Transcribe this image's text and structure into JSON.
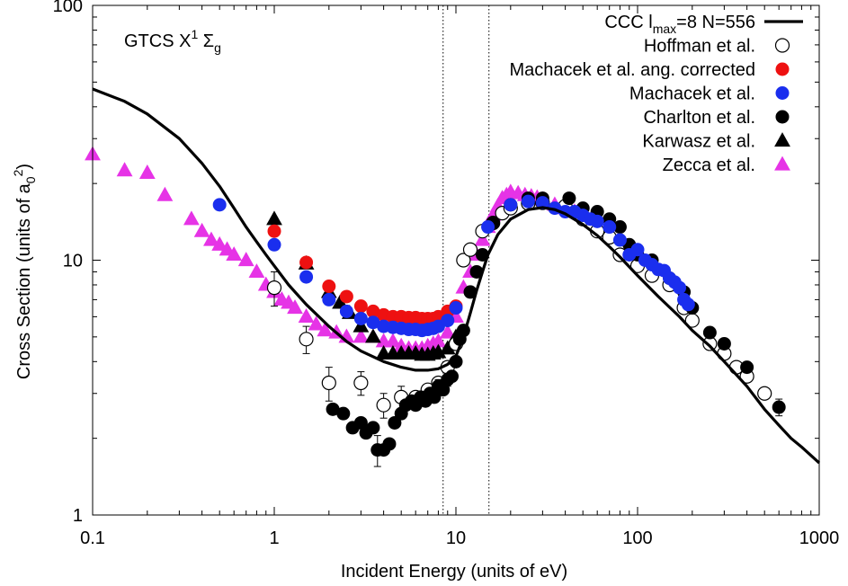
{
  "chart_data": {
    "type": "scatter",
    "xlabel": "Incident Energy (units of eV)",
    "ylabel_main": "Cross Section (units of a",
    "ylabel_sub": "0",
    "ylabel_sup": "2",
    "ylabel_end": ")",
    "xscale": "log",
    "yscale": "log",
    "xlim": [
      0.1,
      1000
    ],
    "ylim": [
      1,
      100
    ],
    "xticks": [
      0.1,
      1,
      10,
      100,
      1000
    ],
    "xtick_labels": [
      "0.1",
      "1",
      "10",
      "100",
      "1000"
    ],
    "yticks": [
      1,
      10,
      100
    ],
    "ytick_labels": [
      "1",
      "10",
      "100"
    ],
    "annotation": {
      "main": "GTCS X",
      "sup": "1",
      "sigma": " Σ",
      "sub": "g"
    },
    "vlines": [
      8.5,
      15.2
    ],
    "legend_position": "top-right",
    "series": [
      {
        "name": "CCC l_max=8 N=556",
        "label_parts": [
          "CCC l",
          "max",
          "=8 N=556"
        ],
        "kind": "line",
        "color": "#000000",
        "points": [
          [
            0.1,
            47
          ],
          [
            0.15,
            42
          ],
          [
            0.2,
            37.5
          ],
          [
            0.3,
            30
          ],
          [
            0.4,
            24
          ],
          [
            0.5,
            19.5
          ],
          [
            0.6,
            16
          ],
          [
            0.7,
            13.5
          ],
          [
            0.8,
            11.8
          ],
          [
            0.9,
            10.5
          ],
          [
            1,
            9.5
          ],
          [
            1.2,
            8
          ],
          [
            1.5,
            6.7
          ],
          [
            2,
            5.5
          ],
          [
            2.5,
            4.8
          ],
          [
            3,
            4.4
          ],
          [
            4,
            4
          ],
          [
            5,
            3.8
          ],
          [
            6,
            3.7
          ],
          [
            7,
            3.7
          ],
          [
            8,
            3.75
          ],
          [
            9,
            3.9
          ],
          [
            10,
            4.2
          ],
          [
            11,
            5
          ],
          [
            12,
            6.2
          ],
          [
            13,
            7.6
          ],
          [
            14,
            9
          ],
          [
            15,
            10.5
          ],
          [
            17,
            12.6
          ],
          [
            20,
            14.5
          ],
          [
            25,
            15.8
          ],
          [
            30,
            16.1
          ],
          [
            35,
            15.8
          ],
          [
            40,
            15.2
          ],
          [
            50,
            13.8
          ],
          [
            60,
            12.5
          ],
          [
            70,
            11.3
          ],
          [
            80,
            10.3
          ],
          [
            100,
            8.7
          ],
          [
            130,
            7.2
          ],
          [
            170,
            6
          ],
          [
            200,
            5.3
          ],
          [
            250,
            4.6
          ],
          [
            300,
            4
          ],
          [
            400,
            3.2
          ],
          [
            500,
            2.6
          ],
          [
            600,
            2.25
          ],
          [
            700,
            2
          ],
          [
            800,
            1.85
          ],
          [
            1000,
            1.6
          ]
        ]
      },
      {
        "name": "Hoffman et al.",
        "kind": "marker",
        "marker": "open-circle",
        "color": "#000000",
        "points": [
          [
            1,
            7.8
          ],
          [
            1.5,
            4.9
          ],
          [
            2,
            3.3
          ],
          [
            3,
            3.3
          ],
          [
            4,
            2.7
          ],
          [
            5,
            2.9
          ],
          [
            6,
            2.9
          ],
          [
            7,
            3.1
          ],
          [
            8,
            3.3
          ],
          [
            9,
            3.8
          ],
          [
            10,
            4.7
          ],
          [
            11,
            10
          ],
          [
            12,
            11
          ],
          [
            14,
            13
          ],
          [
            16,
            14
          ],
          [
            18,
            15.3
          ],
          [
            20,
            16
          ],
          [
            25,
            16.7
          ],
          [
            30,
            16.8
          ],
          [
            40,
            16.3
          ],
          [
            50,
            14.5
          ],
          [
            60,
            13
          ],
          [
            70,
            12.3
          ],
          [
            80,
            10.5
          ],
          [
            100,
            9.5
          ],
          [
            120,
            8.7
          ],
          [
            150,
            8
          ],
          [
            180,
            6.5
          ],
          [
            200,
            5.8
          ],
          [
            250,
            4.7
          ],
          [
            300,
            4.3
          ],
          [
            350,
            3.8
          ],
          [
            400,
            3.5
          ],
          [
            500,
            3
          ]
        ],
        "errors": [
          [
            1,
            1.2
          ],
          [
            1.5,
            0.6
          ],
          [
            2,
            0.5
          ],
          [
            3,
            0.35
          ],
          [
            4,
            0.3
          ],
          [
            5,
            0.3
          ]
        ]
      },
      {
        "name": "Machacek et al. ang. corrected",
        "kind": "marker",
        "marker": "filled-circle",
        "color": "#ee1111",
        "points": [
          [
            1,
            13
          ],
          [
            1.5,
            9.8
          ],
          [
            2,
            7.9
          ],
          [
            2.5,
            7.2
          ],
          [
            3,
            6.6
          ],
          [
            3.5,
            6.3
          ],
          [
            4,
            6.1
          ],
          [
            4.5,
            6
          ],
          [
            5,
            6
          ],
          [
            5.5,
            5.95
          ],
          [
            6,
            5.95
          ],
          [
            6.5,
            5.9
          ],
          [
            7,
            5.9
          ],
          [
            7.5,
            5.9
          ],
          [
            8,
            6
          ],
          [
            9,
            6.3
          ],
          [
            10,
            6.6
          ]
        ]
      },
      {
        "name": "Machacek et al.",
        "kind": "marker",
        "marker": "filled-circle",
        "color": "#1a2eee",
        "points": [
          [
            0.5,
            16.5
          ],
          [
            1,
            11.5
          ],
          [
            1.5,
            8.6
          ],
          [
            2,
            7
          ],
          [
            2.5,
            6.3
          ],
          [
            3,
            5.9
          ],
          [
            3.5,
            5.7
          ],
          [
            4,
            5.5
          ],
          [
            4.5,
            5.45
          ],
          [
            5,
            5.4
          ],
          [
            5.5,
            5.35
          ],
          [
            6,
            5.35
          ],
          [
            6.5,
            5.3
          ],
          [
            7,
            5.35
          ],
          [
            7.5,
            5.4
          ],
          [
            8,
            5.5
          ],
          [
            9,
            5.8
          ],
          [
            10,
            6.5
          ],
          [
            15,
            13.5
          ],
          [
            20,
            16.5
          ],
          [
            25,
            17
          ],
          [
            30,
            16.8
          ],
          [
            35,
            16
          ],
          [
            40,
            15.5
          ],
          [
            45,
            15.5
          ],
          [
            50,
            15
          ],
          [
            55,
            14.5
          ],
          [
            60,
            14.2
          ],
          [
            70,
            13.5
          ],
          [
            80,
            12
          ],
          [
            90,
            10.5
          ],
          [
            100,
            11
          ],
          [
            110,
            10
          ],
          [
            120,
            9.6
          ],
          [
            130,
            9.2
          ],
          [
            140,
            9.1
          ],
          [
            150,
            8.5
          ],
          [
            160,
            8.2
          ],
          [
            170,
            7.8
          ],
          [
            180,
            7
          ],
          [
            190,
            6.7
          ]
        ]
      },
      {
        "name": "Charlton et al.",
        "kind": "marker",
        "marker": "filled-circle",
        "color": "#000000",
        "points": [
          [
            2.1,
            2.6
          ],
          [
            2.4,
            2.5
          ],
          [
            2.7,
            2.2
          ],
          [
            3,
            2.3
          ],
          [
            3.2,
            2.1
          ],
          [
            3.5,
            2.2
          ],
          [
            3.7,
            1.8
          ],
          [
            4,
            1.8
          ],
          [
            4.3,
            1.9
          ],
          [
            4.6,
            2.3
          ],
          [
            5,
            2.5
          ],
          [
            5.3,
            2.7
          ],
          [
            5.7,
            2.8
          ],
          [
            6,
            2.7
          ],
          [
            6.4,
            2.9
          ],
          [
            6.8,
            2.8
          ],
          [
            7.2,
            3
          ],
          [
            7.6,
            2.9
          ],
          [
            8,
            3.2
          ],
          [
            8.5,
            3.1
          ],
          [
            9,
            3.4
          ],
          [
            9.5,
            3.5
          ],
          [
            10,
            4
          ],
          [
            10.5,
            4.9
          ],
          [
            11,
            5.3
          ],
          [
            12,
            7.5
          ],
          [
            13,
            9
          ],
          [
            14,
            10.5
          ],
          [
            16,
            14
          ],
          [
            20,
            16.5
          ],
          [
            25,
            17.5
          ],
          [
            30,
            17.5
          ],
          [
            42,
            17.5
          ],
          [
            50,
            16
          ],
          [
            60,
            15.5
          ],
          [
            70,
            14.5
          ],
          [
            80,
            13.5
          ],
          [
            90,
            11.5
          ],
          [
            100,
            10.5
          ],
          [
            120,
            10
          ],
          [
            150,
            8.5
          ],
          [
            180,
            7.5
          ],
          [
            200,
            6.5
          ],
          [
            250,
            5.2
          ],
          [
            300,
            4.7
          ],
          [
            400,
            3.8
          ],
          [
            600,
            2.65
          ]
        ],
        "errors": [
          [
            3.7,
            0.25
          ],
          [
            8,
            0.2
          ],
          [
            9,
            0.2
          ],
          [
            10,
            0.2
          ],
          [
            600,
            0.2
          ]
        ]
      },
      {
        "name": "Karwasz et al.",
        "kind": "marker",
        "marker": "filled-triangle",
        "color": "#000000",
        "points": [
          [
            1,
            14.5
          ],
          [
            1.5,
            9.7
          ],
          [
            2,
            7.5
          ],
          [
            2.3,
            6.8
          ],
          [
            2.6,
            6.2
          ],
          [
            3,
            5.5
          ],
          [
            3.5,
            5
          ],
          [
            4,
            4.3
          ],
          [
            4.5,
            4.3
          ],
          [
            5,
            4.3
          ],
          [
            5.5,
            4.3
          ],
          [
            6,
            4.3
          ],
          [
            6.5,
            4.25
          ],
          [
            7,
            4.25
          ],
          [
            7.5,
            4.3
          ],
          [
            8,
            4.35
          ],
          [
            9,
            4.5
          ],
          [
            10,
            5
          ]
        ]
      },
      {
        "name": "Zecca et al.",
        "kind": "marker",
        "marker": "filled-triangle",
        "color": "#e633e6",
        "points": [
          [
            0.1,
            26
          ],
          [
            0.15,
            22.5
          ],
          [
            0.2,
            22
          ],
          [
            0.25,
            18
          ],
          [
            0.35,
            14.5
          ],
          [
            0.4,
            13
          ],
          [
            0.45,
            12
          ],
          [
            0.5,
            11.5
          ],
          [
            0.55,
            11
          ],
          [
            0.6,
            10.5
          ],
          [
            0.7,
            10
          ],
          [
            0.8,
            9
          ],
          [
            0.9,
            8
          ],
          [
            1,
            7.5
          ],
          [
            1.1,
            7
          ],
          [
            1.2,
            6.8
          ],
          [
            1.3,
            6.5
          ],
          [
            1.5,
            6
          ],
          [
            1.7,
            5.6
          ],
          [
            1.9,
            5.3
          ],
          [
            2.2,
            5.2
          ],
          [
            2.5,
            5
          ],
          [
            3,
            5
          ],
          [
            3.5,
            5
          ],
          [
            4,
            4.8
          ],
          [
            4.5,
            4.8
          ],
          [
            5,
            4.6
          ],
          [
            5.5,
            4.5
          ],
          [
            6,
            4.5
          ],
          [
            6.5,
            4.5
          ],
          [
            7,
            4.6
          ],
          [
            7.5,
            4.7
          ],
          [
            8,
            4.8
          ],
          [
            9,
            5.2
          ],
          [
            10,
            6
          ],
          [
            11,
            7.8
          ],
          [
            12,
            9
          ],
          [
            13,
            10.5
          ],
          [
            14,
            12
          ],
          [
            15,
            13.5
          ],
          [
            16,
            15
          ],
          [
            17,
            16.3
          ],
          [
            18,
            17.5
          ],
          [
            19,
            18
          ],
          [
            20,
            18.5
          ],
          [
            22,
            18.3
          ],
          [
            24,
            18
          ],
          [
            26,
            17.8
          ],
          [
            28,
            17.6
          ],
          [
            30,
            17.3
          ],
          [
            35,
            16.5
          ],
          [
            40,
            16
          ],
          [
            45,
            15.5
          ],
          [
            50,
            15
          ]
        ]
      }
    ]
  }
}
